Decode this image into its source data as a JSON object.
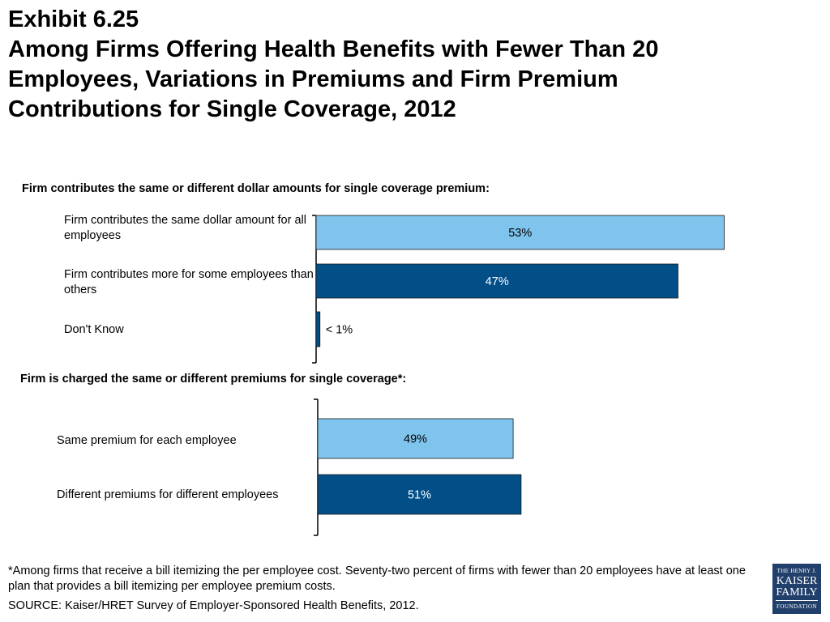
{
  "header": {
    "exhibit": "Exhibit 6.25",
    "title_lines": [
      "Among Firms Offering Health Benefits with Fewer Than 20",
      "Employees, Variations in Premiums and Firm Premium",
      "Contributions for Single Coverage, 2012"
    ]
  },
  "chart_data": [
    {
      "type": "bar",
      "orientation": "horizontal",
      "title": "Firm contributes the same or different dollar amounts for single coverage premium:",
      "categories": [
        "Firm contributes the same dollar amount for all employees",
        "Firm contributes more for some employees than others",
        "Don't Know"
      ],
      "values": [
        53,
        47,
        0.5
      ],
      "data_labels": [
        "53%",
        "47%",
        "< 1%"
      ],
      "colors": [
        "#7fc4ec",
        "#024f88",
        "#024f88"
      ],
      "xlim": [
        0,
        100
      ],
      "grid": false
    },
    {
      "type": "bar",
      "orientation": "horizontal",
      "title": "Firm is charged the same or different premiums for single coverage*:",
      "categories": [
        "Same premium for each employee",
        "Different premiums for different employees"
      ],
      "values": [
        49,
        51
      ],
      "data_labels": [
        "49%",
        "51%"
      ],
      "colors": [
        "#7fc4ec",
        "#024f88"
      ],
      "xlim": [
        0,
        100
      ],
      "grid": false
    }
  ],
  "footnote": "*Among  firms that receive a bill itemizing the per employee cost.  Seventy-two percent of firms with fewer than 20 employees have at least one plan that provides a bill itemizing per employee premium costs.",
  "source": "SOURCE:  Kaiser/HRET Survey of Employer-Sponsored Health Benefits, 2012.",
  "logo": {
    "line1": "THE HENRY J.",
    "line2": "KAISER",
    "line3": "FAMILY",
    "line4": "FOUNDATION"
  }
}
